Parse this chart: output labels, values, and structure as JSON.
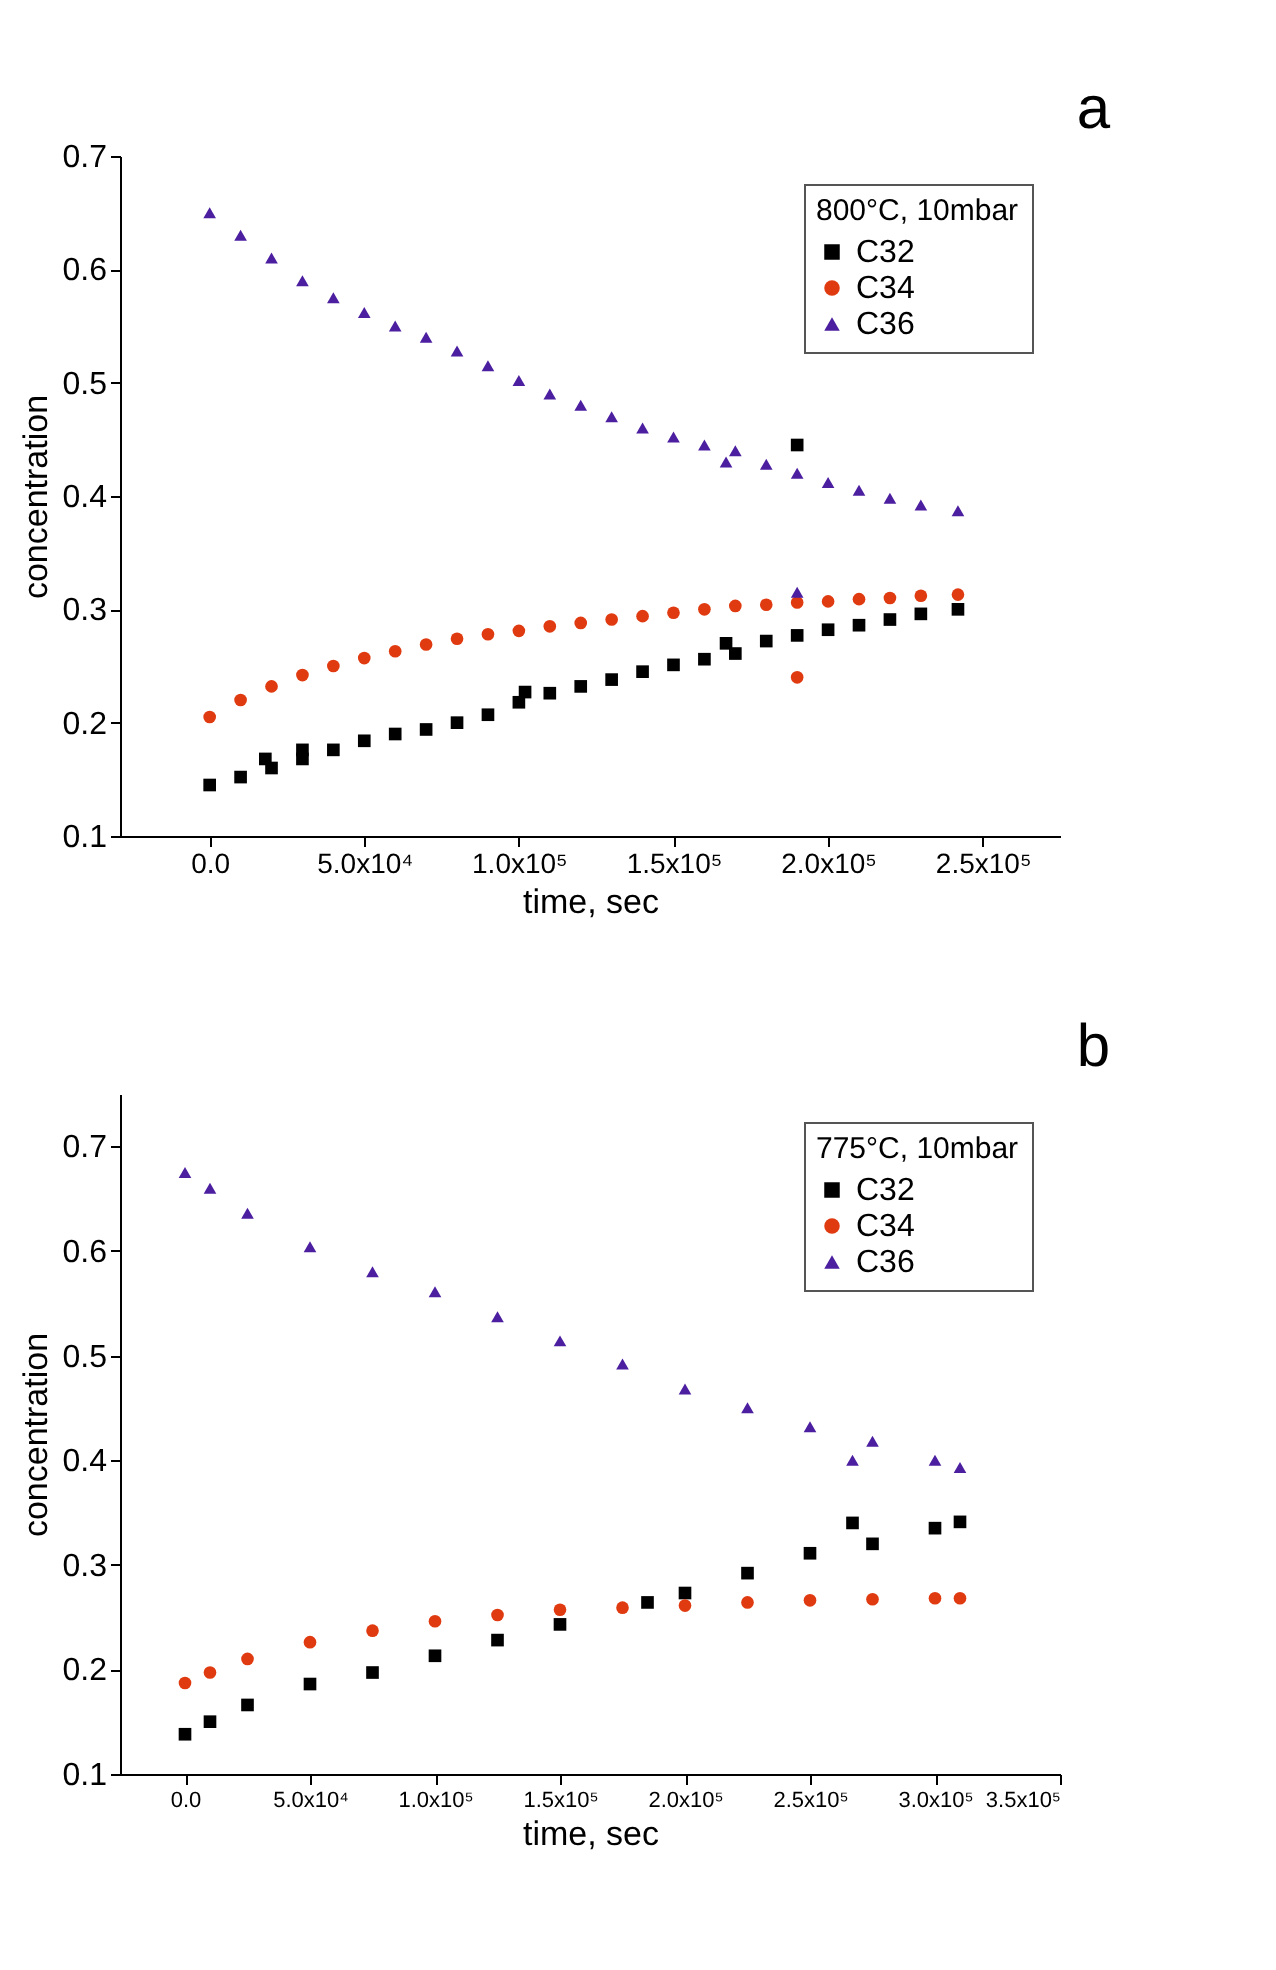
{
  "chart_data": [
    {
      "type": "scatter",
      "xlabel": "time, sec",
      "ylabel": "concentration",
      "legend_title": "800°C, 10mbar",
      "legend": "top right",
      "grid": false,
      "annotations": [
        "a"
      ],
      "xlim": [
        -29000,
        275000
      ],
      "ylim": [
        0.1,
        0.7
      ],
      "xticks": [
        {
          "value": 0,
          "label": "0.0"
        },
        {
          "value": 50000,
          "label": "5.0x10⁴"
        },
        {
          "value": 100000,
          "label": "1.0x10⁵"
        },
        {
          "value": 150000,
          "label": "1.5x10⁵"
        },
        {
          "value": 200000,
          "label": "2.0x10⁵"
        },
        {
          "value": 250000,
          "label": "2.5x10⁵"
        }
      ],
      "yticks": [
        0.1,
        0.2,
        0.3,
        0.4,
        0.5,
        0.6,
        0.7
      ],
      "series": [
        {
          "name": "C32",
          "color": "#000000",
          "marker": "square",
          "x": [
            0,
            10000,
            18000,
            20000,
            30000,
            30000,
            40000,
            50000,
            60000,
            70000,
            80000,
            90000,
            100000,
            102000,
            110000,
            120000,
            130000,
            140000,
            150000,
            160000,
            167000,
            170000,
            180000,
            190000,
            190000,
            200000,
            210000,
            220000,
            230000,
            242000
          ],
          "values": [
            0.145,
            0.152,
            0.168,
            0.16,
            0.168,
            0.176,
            0.176,
            0.184,
            0.19,
            0.194,
            0.2,
            0.207,
            0.218,
            0.227,
            0.226,
            0.232,
            0.238,
            0.245,
            0.251,
            0.256,
            0.27,
            0.261,
            0.272,
            0.277,
            0.445,
            0.282,
            0.286,
            0.291,
            0.296,
            0.3
          ]
        },
        {
          "name": "C34",
          "color": "#e03a10",
          "marker": "circle",
          "x": [
            0,
            10000,
            20000,
            30000,
            40000,
            50000,
            60000,
            70000,
            80000,
            90000,
            100000,
            110000,
            120000,
            130000,
            140000,
            150000,
            160000,
            170000,
            180000,
            190000,
            190000,
            200000,
            210000,
            220000,
            230000,
            242000
          ],
          "values": [
            0.205,
            0.22,
            0.232,
            0.242,
            0.25,
            0.257,
            0.263,
            0.269,
            0.274,
            0.278,
            0.281,
            0.285,
            0.288,
            0.291,
            0.294,
            0.297,
            0.3,
            0.303,
            0.304,
            0.306,
            0.24,
            0.307,
            0.309,
            0.31,
            0.312,
            0.313
          ]
        },
        {
          "name": "C36",
          "color": "#4b1fa0",
          "marker": "triangle",
          "x": [
            0,
            10000,
            20000,
            30000,
            40000,
            50000,
            60000,
            70000,
            80000,
            90000,
            100000,
            110000,
            120000,
            130000,
            140000,
            150000,
            160000,
            167000,
            170000,
            180000,
            190000,
            190000,
            200000,
            210000,
            220000,
            230000,
            242000
          ],
          "values": [
            0.65,
            0.63,
            0.61,
            0.59,
            0.575,
            0.562,
            0.55,
            0.54,
            0.528,
            0.515,
            0.502,
            0.49,
            0.48,
            0.47,
            0.46,
            0.452,
            0.445,
            0.43,
            0.44,
            0.428,
            0.42,
            0.315,
            0.412,
            0.405,
            0.398,
            0.392,
            0.387
          ]
        }
      ]
    },
    {
      "type": "scatter",
      "xlabel": "time, sec",
      "ylabel": "concentration",
      "legend_title": "775°C, 10mbar",
      "legend": "top right",
      "grid": false,
      "annotations": [
        "b"
      ],
      "xlim": [
        -26000,
        350000
      ],
      "ylim": [
        0.1,
        0.75
      ],
      "xticks": [
        {
          "value": 0,
          "label": "0.0"
        },
        {
          "value": 50000,
          "label": "5.0x10⁴"
        },
        {
          "value": 100000,
          "label": "1.0x10⁵"
        },
        {
          "value": 150000,
          "label": "1.5x10⁵"
        },
        {
          "value": 200000,
          "label": "2.0x10⁵"
        },
        {
          "value": 250000,
          "label": "2.5x10⁵"
        },
        {
          "value": 300000,
          "label": "3.0x10⁵"
        },
        {
          "value": 350000,
          "label": "3.5x10⁵"
        }
      ],
      "yticks": [
        0.1,
        0.2,
        0.3,
        0.4,
        0.5,
        0.6,
        0.7
      ],
      "series": [
        {
          "name": "C32",
          "color": "#000000",
          "marker": "square",
          "x": [
            0,
            10000,
            25000,
            50000,
            75000,
            100000,
            125000,
            150000,
            185000,
            200000,
            225000,
            250000,
            267000,
            275000,
            300000,
            310000
          ],
          "values": [
            0.138,
            0.15,
            0.166,
            0.186,
            0.197,
            0.213,
            0.228,
            0.243,
            0.264,
            0.273,
            0.292,
            0.311,
            0.34,
            0.32,
            0.335,
            0.341
          ]
        },
        {
          "name": "C34",
          "color": "#e03a10",
          "marker": "circle",
          "x": [
            0,
            10000,
            25000,
            50000,
            75000,
            100000,
            125000,
            150000,
            175000,
            200000,
            225000,
            250000,
            275000,
            300000,
            310000
          ],
          "values": [
            0.187,
            0.197,
            0.21,
            0.226,
            0.237,
            0.246,
            0.252,
            0.257,
            0.259,
            0.261,
            0.264,
            0.266,
            0.267,
            0.268,
            0.268
          ]
        },
        {
          "name": "C36",
          "color": "#4b1fa0",
          "marker": "triangle",
          "x": [
            0,
            10000,
            25000,
            50000,
            75000,
            100000,
            125000,
            150000,
            175000,
            200000,
            225000,
            250000,
            267000,
            275000,
            300000,
            310000
          ],
          "values": [
            0.675,
            0.66,
            0.636,
            0.604,
            0.58,
            0.561,
            0.537,
            0.514,
            0.492,
            0.468,
            0.45,
            0.432,
            0.4,
            0.418,
            0.4,
            0.393
          ]
        }
      ]
    }
  ]
}
